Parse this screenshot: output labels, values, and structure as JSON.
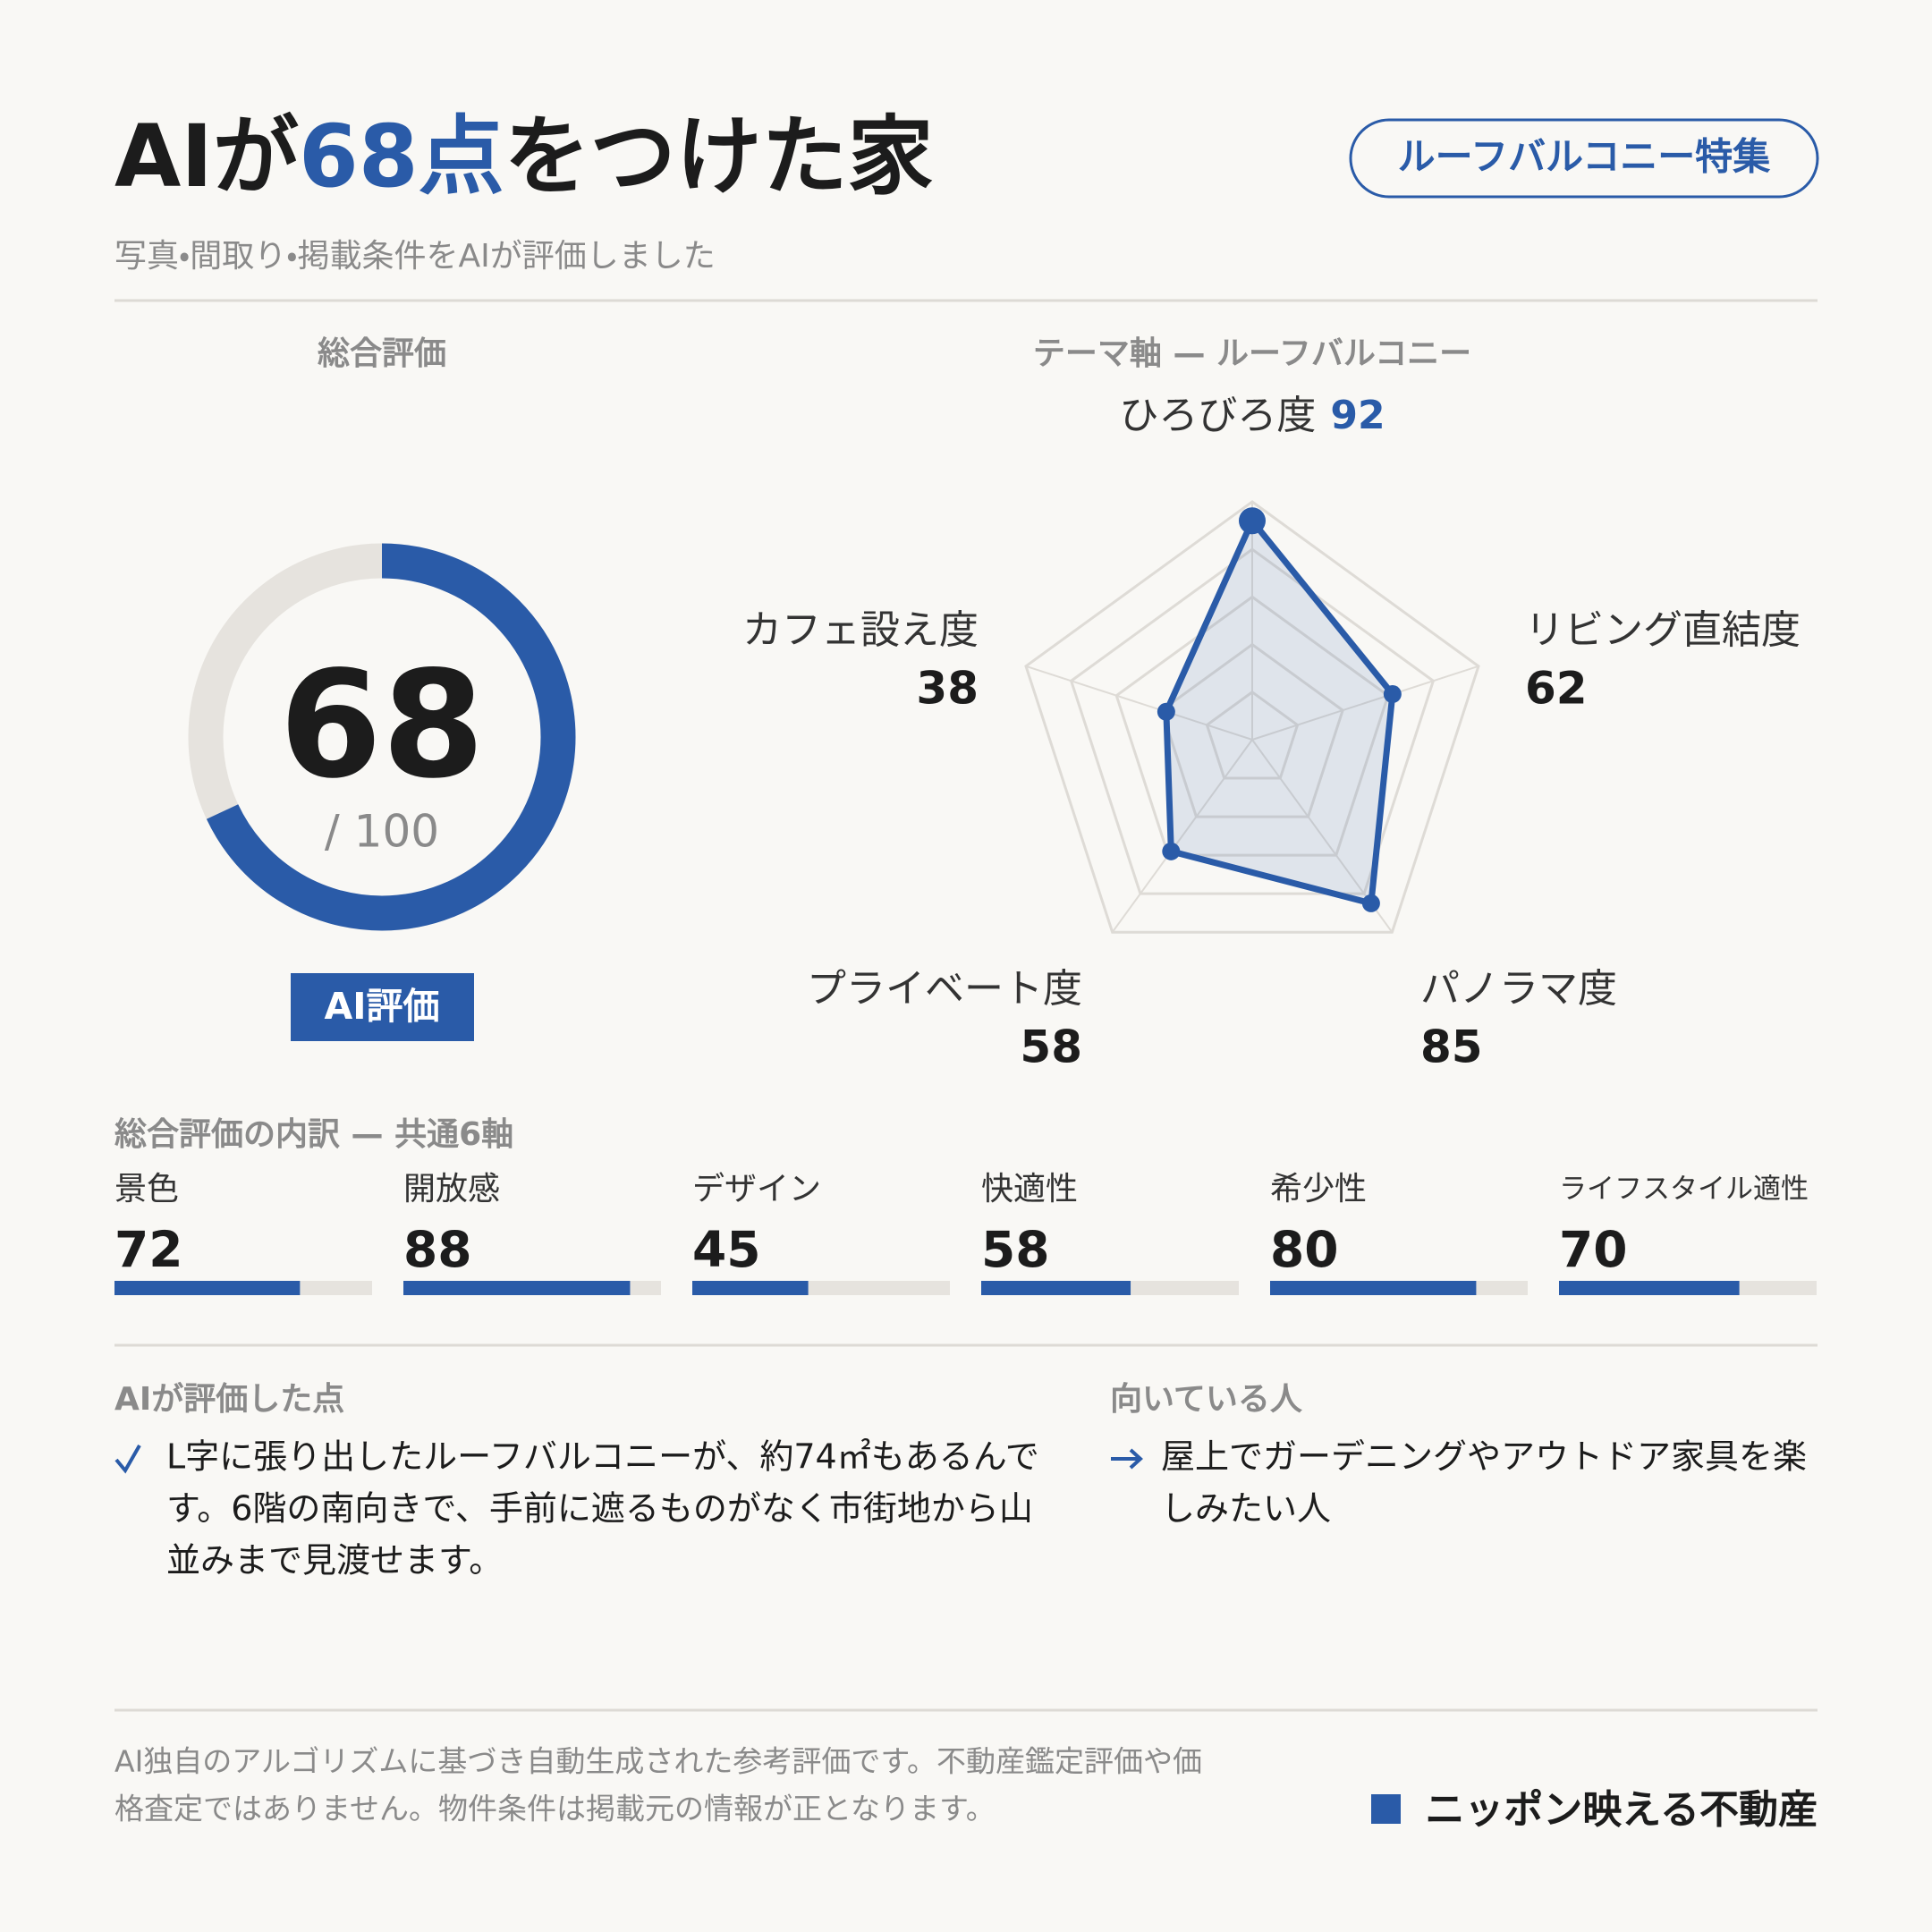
{
  "header": {
    "title_parts": [
      "AIが",
      "68点",
      "をつけた家"
    ],
    "badge": "ルーフバルコニー特集",
    "subtitle": "写真・間取り・掲載条件をAIが評価しました"
  },
  "chart_data": [
    {
      "type": "gauge",
      "title": "総合評価",
      "value": 68,
      "max": {
        "value": 100,
        "label": "/ 100"
      },
      "color": "#2a5ba8",
      "track_color": "#e6e3de",
      "badge": "AI評価"
    },
    {
      "type": "radar",
      "title": "テーマ軸 — ルーフバルコニー",
      "categories": [
        "ひろびろ度",
        "リビング直結度",
        "パノラマ度",
        "プライベート度",
        "カフェ設え度"
      ],
      "values": [
        92,
        62,
        85,
        58,
        38
      ],
      "rlim": [
        0,
        100
      ],
      "rticks": [
        20,
        40,
        60,
        80,
        100
      ],
      "color": "#2a5ba8"
    },
    {
      "type": "bar",
      "title": "総合評価の内訳 — 共通6軸",
      "categories": [
        "景色",
        "開放感",
        "デザイン",
        "快適性",
        "希少性",
        "ライフスタイル適性"
      ],
      "values": [
        72,
        88,
        45,
        58,
        80,
        70
      ],
      "xlim": [
        0,
        100
      ],
      "color": "#2a5ba8",
      "track_color": "#e6e3de"
    }
  ],
  "highlights": {
    "title": "AIが評価した点",
    "lines": [
      "L字に張り出したルーフバルコニーが、約74㎡もあるんで",
      "す。6階の南向きで、手前に遮るものがなく市街地から山",
      "並みまで見渡せます。"
    ]
  },
  "fit": {
    "title": "向いている人",
    "lines": [
      "屋上でガーデニングやアウトドア家具を楽",
      "しみたい人"
    ]
  },
  "footer": {
    "disclaimer_lines": [
      "AI独自のアルゴリズムに基づき自動生成された参考評価です。不動産鑑定評価や価",
      "格査定ではありません。物件条件は掲載元の情報が正となります。"
    ],
    "brand": "ニッポン映える不動産"
  }
}
